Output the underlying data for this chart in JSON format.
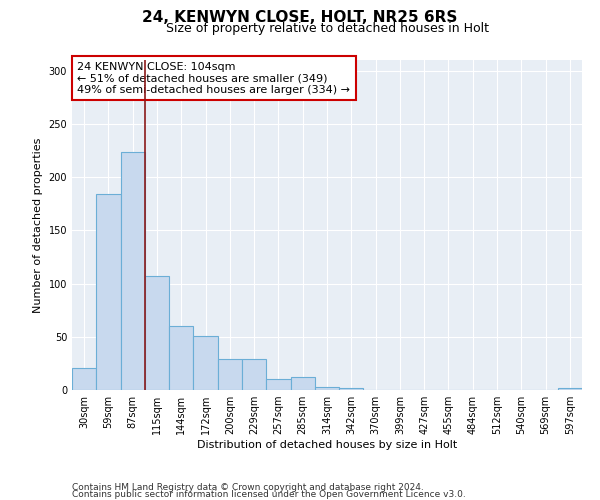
{
  "title": "24, KENWYN CLOSE, HOLT, NR25 6RS",
  "subtitle": "Size of property relative to detached houses in Holt",
  "xlabel": "Distribution of detached houses by size in Holt",
  "ylabel": "Number of detached properties",
  "bar_labels": [
    "30sqm",
    "59sqm",
    "87sqm",
    "115sqm",
    "144sqm",
    "172sqm",
    "200sqm",
    "229sqm",
    "257sqm",
    "285sqm",
    "314sqm",
    "342sqm",
    "370sqm",
    "399sqm",
    "427sqm",
    "455sqm",
    "484sqm",
    "512sqm",
    "540sqm",
    "569sqm",
    "597sqm"
  ],
  "bar_values": [
    21,
    184,
    224,
    107,
    60,
    51,
    29,
    29,
    10,
    12,
    3,
    2,
    0,
    0,
    0,
    0,
    0,
    0,
    0,
    0,
    2
  ],
  "bar_color": "#c8d9ee",
  "bar_edge_color": "#6baed6",
  "vline_color": "#8b1a1a",
  "annotation_text": "24 KENWYN CLOSE: 104sqm\n← 51% of detached houses are smaller (349)\n49% of semi-detached houses are larger (334) →",
  "annotation_box_color": "#ffffff",
  "annotation_box_edge": "#cc0000",
  "ylim": [
    0,
    310
  ],
  "yticks": [
    0,
    50,
    100,
    150,
    200,
    250,
    300
  ],
  "background_color": "#e8eef5",
  "grid_color": "#ffffff",
  "footer_line1": "Contains HM Land Registry data © Crown copyright and database right 2024.",
  "footer_line2": "Contains public sector information licensed under the Open Government Licence v3.0.",
  "title_fontsize": 11,
  "subtitle_fontsize": 9,
  "xlabel_fontsize": 8,
  "ylabel_fontsize": 8,
  "tick_fontsize": 7,
  "annotation_fontsize": 8,
  "footer_fontsize": 6.5
}
